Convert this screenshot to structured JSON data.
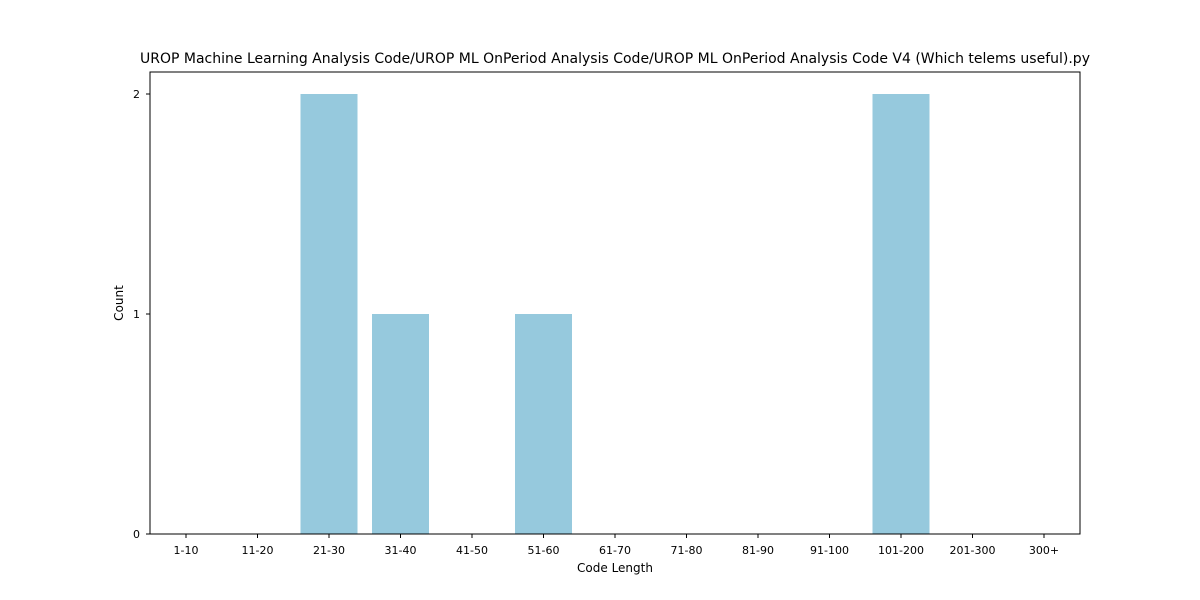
{
  "chart_data": {
    "type": "bar",
    "title": "UROP Machine Learning Analysis Code/UROP ML OnPeriod Analysis Code/UROP ML OnPeriod Analysis Code V4 (Which telems useful).py",
    "xlabel": "Code Length",
    "ylabel": "Count",
    "categories": [
      "1-10",
      "11-20",
      "21-30",
      "31-40",
      "41-50",
      "51-60",
      "61-70",
      "71-80",
      "81-90",
      "91-100",
      "101-200",
      "201-300",
      "300+"
    ],
    "values": [
      0,
      0,
      2,
      1,
      0,
      1,
      0,
      0,
      0,
      0,
      2,
      0,
      0
    ],
    "ylim": [
      0,
      2.1
    ],
    "yticks": [
      0,
      1,
      2
    ],
    "bar_color": "#96c9dd",
    "grid": false,
    "legend": "none"
  }
}
